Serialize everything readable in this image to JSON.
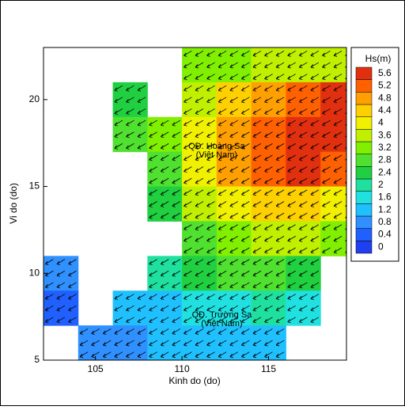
{
  "chart_data": {
    "type": "heatmap",
    "xlabel": "Kinh do (do)",
    "ylabel": "Vi do (do)",
    "xlim": [
      102,
      119.5
    ],
    "xticks": [
      105,
      110,
      115
    ],
    "ylim": [
      5,
      23
    ],
    "yticks": [
      5,
      10,
      15,
      20
    ],
    "x": [
      103,
      105,
      107,
      109,
      111,
      113,
      115,
      117,
      119
    ],
    "y": [
      22,
      20,
      18,
      16,
      14,
      12,
      10,
      8,
      6
    ],
    "z": [
      [
        null,
        null,
        null,
        null,
        3.2,
        3.4,
        3.6,
        3.8,
        3.8
      ],
      [
        null,
        null,
        2.4,
        null,
        3.6,
        4.4,
        5.0,
        5.4,
        5.6
      ],
      [
        null,
        null,
        2.8,
        3.4,
        4.2,
        4.8,
        5.4,
        5.6,
        5.6
      ],
      [
        null,
        null,
        null,
        3.0,
        4.0,
        4.8,
        5.4,
        5.6,
        5.4
      ],
      [
        null,
        null,
        null,
        2.6,
        3.6,
        4.2,
        4.6,
        4.4,
        4.0
      ],
      [
        null,
        null,
        null,
        null,
        3.0,
        3.4,
        3.6,
        3.6,
        3.2
      ],
      [
        1.0,
        null,
        null,
        2.0,
        2.4,
        2.8,
        2.8,
        2.4,
        null
      ],
      [
        0.6,
        null,
        1.2,
        1.4,
        1.6,
        1.8,
        2.0,
        1.6,
        null
      ],
      [
        null,
        0.8,
        1.0,
        1.2,
        1.4,
        1.4,
        1.2,
        null,
        null
      ]
    ],
    "colorbar": {
      "title": "Hs(m)",
      "levels": [
        0,
        0.4,
        0.8,
        1.2,
        1.6,
        2,
        2.4,
        2.8,
        3.2,
        3.6,
        4,
        4.4,
        4.8,
        5.2,
        5.6
      ],
      "colors": [
        "#1f3ff0",
        "#2060ff",
        "#3090ff",
        "#20c0ff",
        "#20e0e0",
        "#20e0a0",
        "#20d040",
        "#50e030",
        "#80f000",
        "#c0f000",
        "#f0f000",
        "#ffd000",
        "#ffa000",
        "#ff6000",
        "#e03010"
      ]
    },
    "annotations": [
      [
        "QĐ. Hoàng Sa",
        "(Việt Nam)"
      ],
      [
        "QĐ. Trường Sa",
        "(Việt Nam)"
      ]
    ]
  }
}
